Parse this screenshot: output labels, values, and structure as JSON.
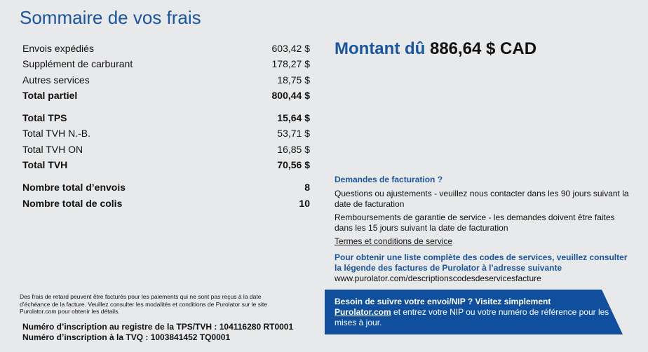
{
  "title": "Sommaire de vos frais",
  "summary": {
    "rows": [
      {
        "label": "Envois expédiés",
        "value": "603,42 $"
      },
      {
        "label": "Supplément de carburant",
        "value": "178,27 $"
      },
      {
        "label": "Autres services",
        "value": "18,75 $"
      },
      {
        "label": "Total partiel",
        "value": "800,44 $"
      },
      {
        "label": "Total TPS",
        "value": "15,64 $"
      },
      {
        "label": "Total TVH N.-B.",
        "value": "53,71 $"
      },
      {
        "label": "Total TVH ON",
        "value": "16,85 $"
      },
      {
        "label": "Total TVH",
        "value": "70,56 $"
      },
      {
        "label": "Nombre total d’envois",
        "value": "8"
      },
      {
        "label": "Nombre total de colis",
        "value": "10"
      }
    ]
  },
  "amount_due": {
    "label": "Montant dû",
    "value": "886,64 $ CAD"
  },
  "billing": {
    "heading": "Demandes de facturation ?",
    "questions": "Questions ou ajustements - veuillez nous contacter dans les 90 jours suivant la date de facturation",
    "refunds": "Remboursements de garantie de service - les demandes doivent être faites dans les 15 jours suivant la date de facturation",
    "terms_link": "Termes et conditions de service",
    "codes_info": "Pour obtenir une liste complète des codes de services, veuillez consulter la légende des factures de Purolator à l’adresse suivante",
    "codes_url": "www.purolator.com/descriptionscodesdeservicesfacture"
  },
  "notice": "Des frais de retard peuvent être facturés pour les paiements qui ne sont pas reçus à la date d’échéance de la facture. Veuillez consulter les modalités et conditions de Purolator sur le site Purolator.com pour obtenir les détails.",
  "registrations": {
    "tps_tvh": "Numéro d’inscription au registre de la TPS/TVH : 104116280 RT0001",
    "tvq": "Numéro d’inscription à la TVQ : 1003841452 TQ0001"
  },
  "banner": {
    "lead": "Besoin de suivre votre envoi/NIP ? Visitez simplement",
    "link": "Purolator.com",
    "rest": "et entrez votre NIP ou votre numéro de référence pour les mises à jour."
  }
}
